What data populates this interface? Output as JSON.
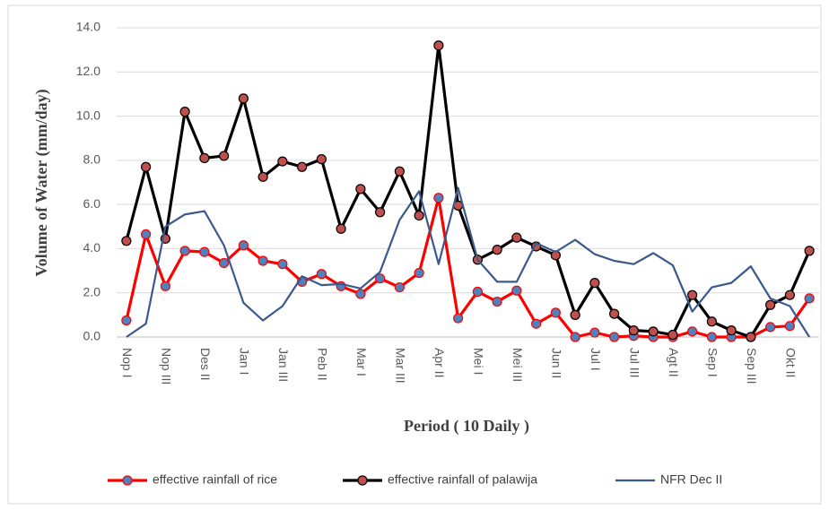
{
  "chart_data": {
    "type": "line",
    "x_label": "Period ( 10 Daily )",
    "y_label": "Volume of Water (mm/day)",
    "categories": [
      "Nop I",
      null,
      "Nop III",
      null,
      "Des II",
      null,
      "Jan I",
      null,
      "Jan III",
      null,
      "Peb II",
      null,
      "Mar I",
      null,
      "Mar III",
      null,
      "Apr II",
      null,
      "Mei I",
      null,
      "Mei III",
      null,
      "Jun II",
      null,
      "Jul I",
      null,
      "Jul III",
      null,
      "Agt II",
      null,
      "Sep I",
      null,
      "Sep III",
      null,
      "Okt II",
      null
    ],
    "series": [
      {
        "name": "effective rainfall of rice",
        "color": "#ff0000",
        "marker_color": "#4f81bd",
        "values": [
          0.75,
          4.65,
          2.3,
          3.9,
          3.85,
          3.35,
          4.15,
          3.45,
          3.3,
          2.5,
          2.85,
          2.3,
          1.95,
          2.65,
          2.25,
          2.9,
          6.3,
          0.85,
          2.05,
          1.6,
          2.1,
          0.6,
          1.1,
          0.0,
          0.2,
          0.0,
          0.05,
          0.0,
          0.0,
          0.25,
          0.0,
          0.0,
          0.0,
          0.45,
          0.5,
          1.75
        ]
      },
      {
        "name": "effective rainfall of palawija",
        "color": "#000000",
        "marker_color": "#c0504d",
        "values": [
          4.35,
          7.7,
          4.45,
          10.2,
          8.1,
          8.2,
          10.8,
          7.25,
          7.95,
          7.7,
          8.05,
          4.9,
          6.7,
          5.65,
          7.5,
          5.5,
          13.2,
          5.95,
          3.5,
          3.95,
          4.5,
          4.1,
          3.7,
          1.0,
          2.45,
          1.05,
          0.3,
          0.25,
          0.1,
          1.9,
          0.7,
          0.3,
          0.0,
          1.45,
          1.9,
          3.9
        ]
      },
      {
        "name": "NFR Dec II",
        "color": "#3a5a8c",
        "marker_color": null,
        "values": [
          0.0,
          0.6,
          5.0,
          5.55,
          5.7,
          4.15,
          1.55,
          0.75,
          1.4,
          2.75,
          2.35,
          2.4,
          2.2,
          2.95,
          5.3,
          6.6,
          3.3,
          6.75,
          3.5,
          2.5,
          2.5,
          4.25,
          3.85,
          4.4,
          3.75,
          3.45,
          3.3,
          3.8,
          3.25,
          1.15,
          2.25,
          2.45,
          3.2,
          1.75,
          1.4,
          0.0
        ]
      }
    ],
    "ylim": [
      0,
      14
    ],
    "yticks": [
      {
        "value": 0,
        "label": "0.0"
      },
      {
        "value": 2,
        "label": "2.0"
      },
      {
        "value": 4,
        "label": "4.0"
      },
      {
        "value": 6,
        "label": "6.0"
      },
      {
        "value": 8,
        "label": "8.0"
      },
      {
        "value": 10,
        "label": "10.0"
      },
      {
        "value": 12,
        "label": "12.0"
      },
      {
        "value": 14,
        "label": "14.0"
      }
    ],
    "grid": true,
    "legend": "bottom"
  }
}
